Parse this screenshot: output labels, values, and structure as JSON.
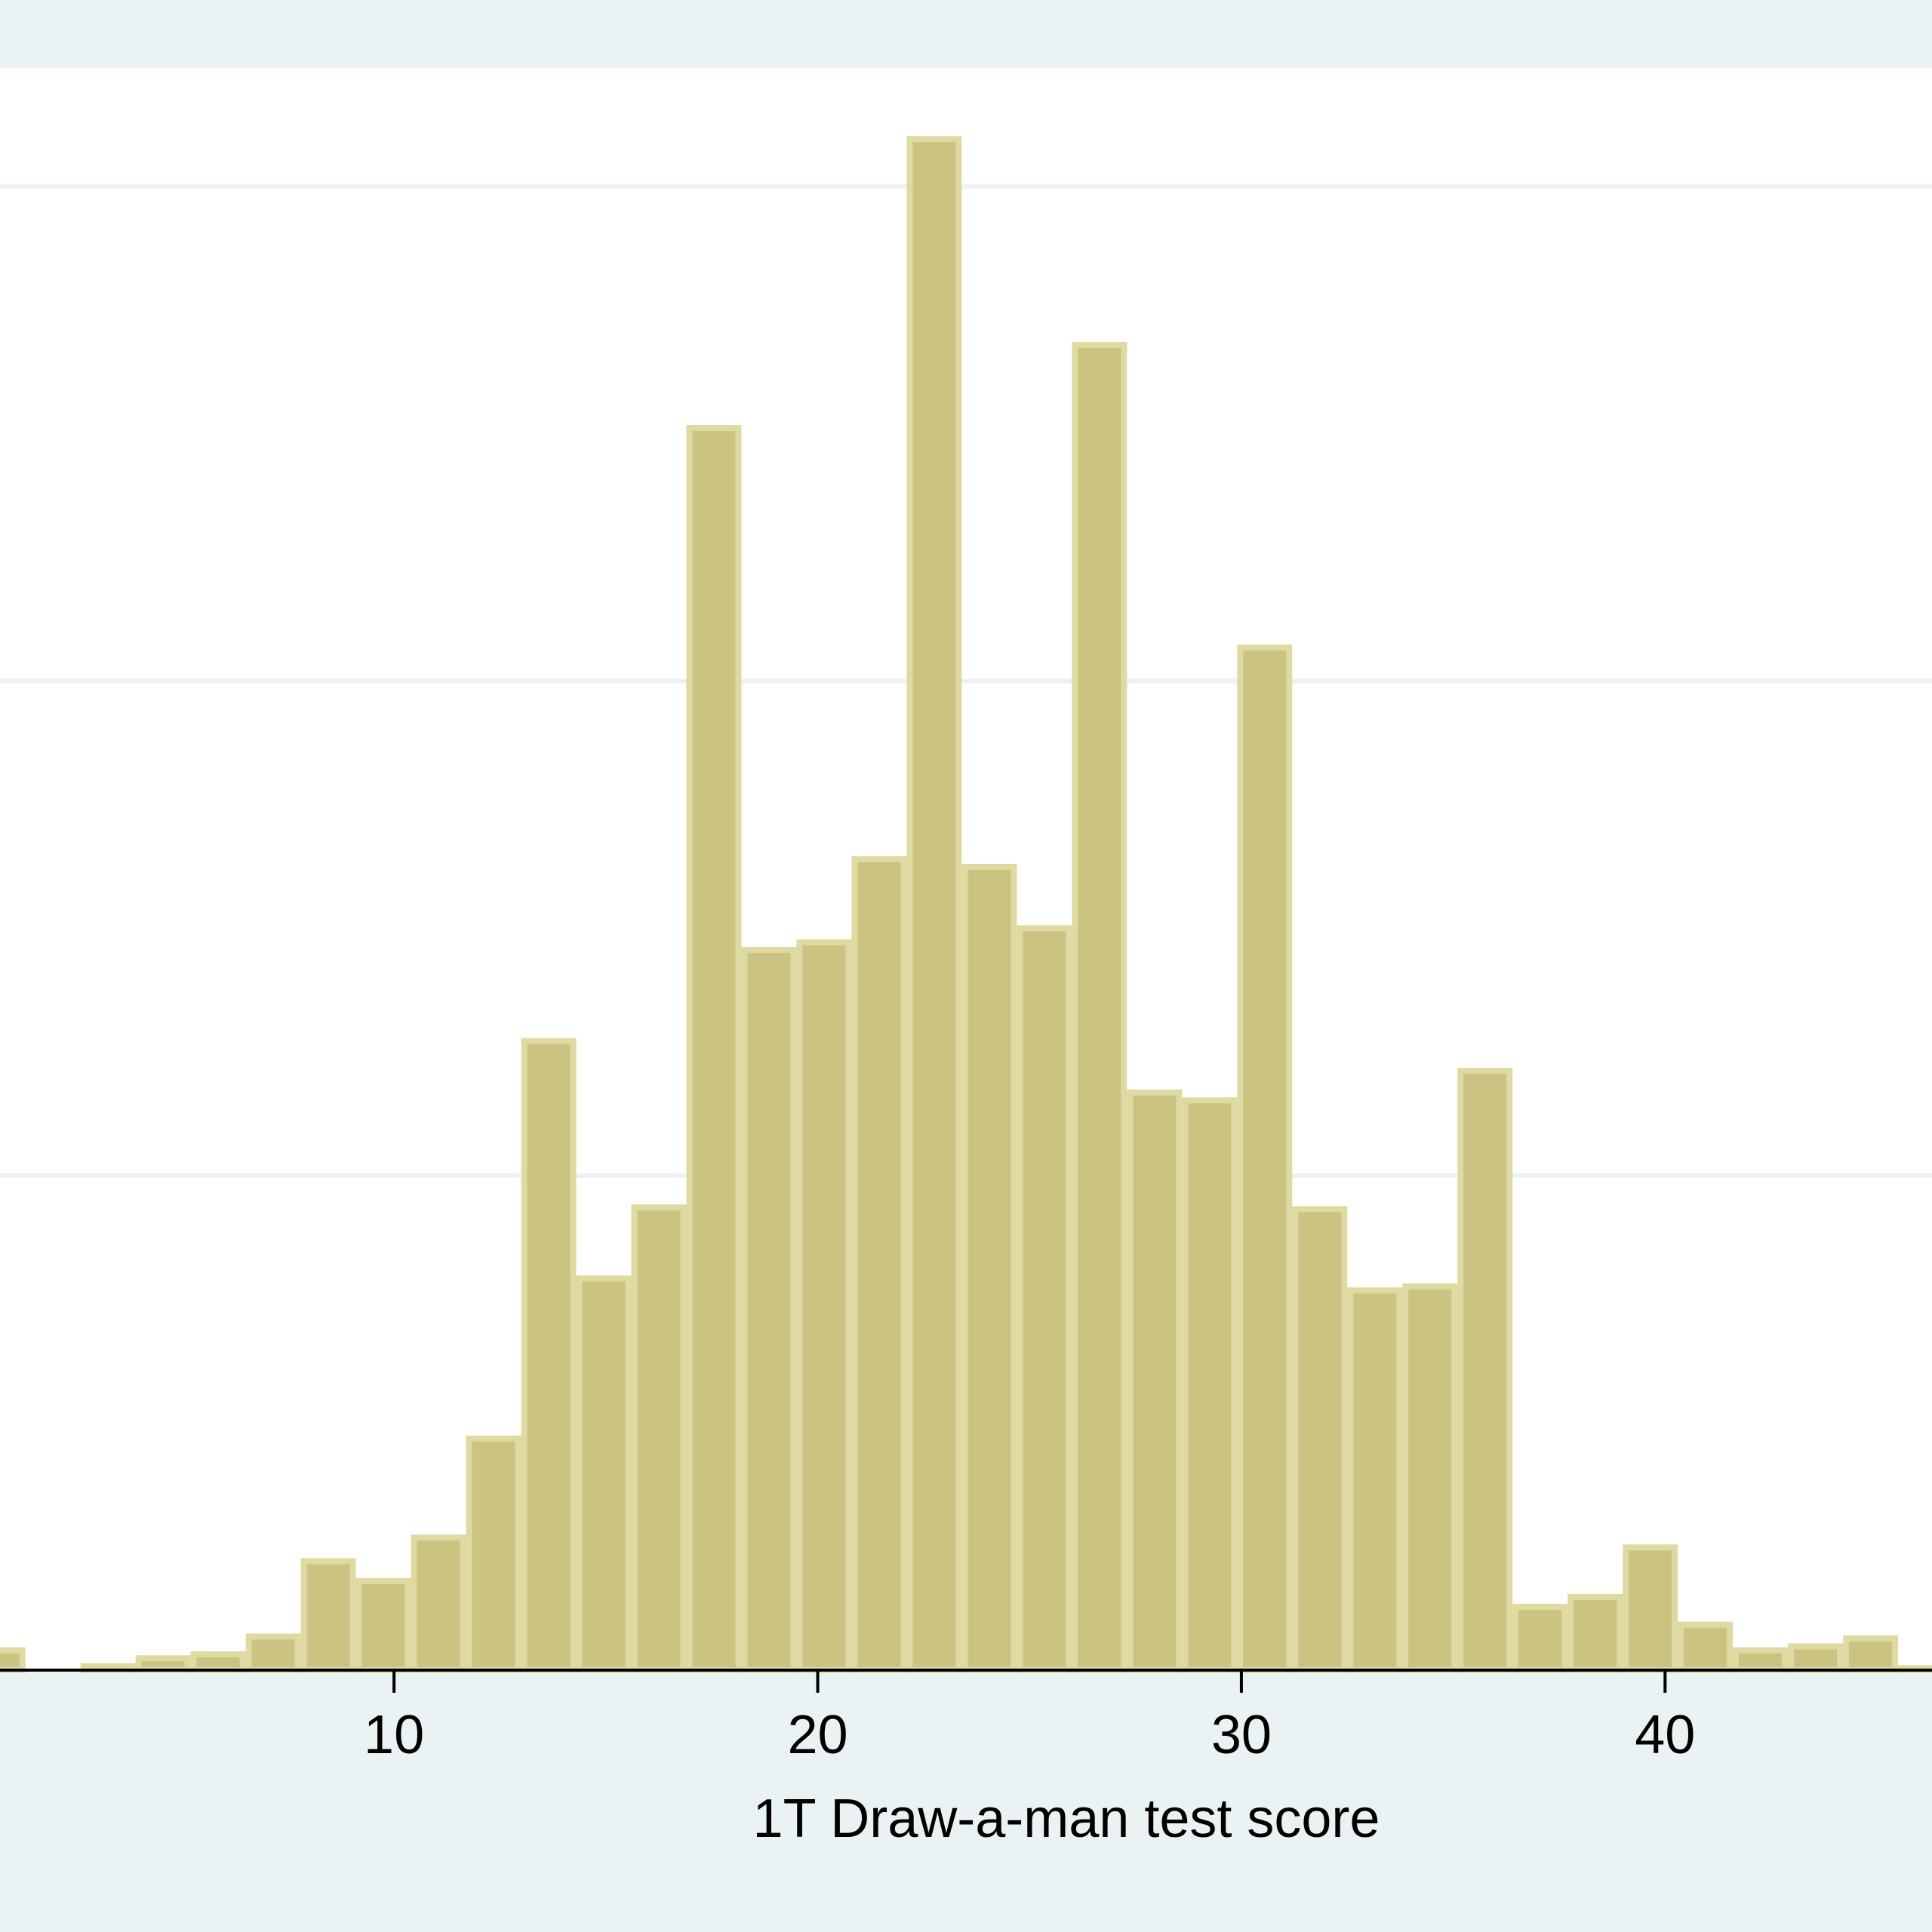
{
  "chart_data": {
    "type": "bar",
    "subtype": "histogram",
    "title": "",
    "xlabel": "1T Draw-a-man test score",
    "ylabel": "",
    "xlim": [
      0.7,
      46.3
    ],
    "ylim": [
      0,
      0.081
    ],
    "grid": true,
    "legend": "none",
    "x_ticks": [
      10,
      20,
      30,
      40
    ],
    "bin_width": 1.3,
    "bins": [
      {
        "x0": 0.0,
        "x1": 1.3,
        "value": 0.001
      },
      {
        "x0": 1.3,
        "x1": 2.6,
        "value": 0.0
      },
      {
        "x0": 2.6,
        "x1": 3.9,
        "value": 0.0002
      },
      {
        "x0": 3.9,
        "x1": 5.2,
        "value": 0.0006
      },
      {
        "x0": 5.2,
        "x1": 6.5,
        "value": 0.0008
      },
      {
        "x0": 6.5,
        "x1": 7.8,
        "value": 0.0017
      },
      {
        "x0": 7.8,
        "x1": 9.1,
        "value": 0.0055
      },
      {
        "x0": 9.1,
        "x1": 10.4,
        "value": 0.0045
      },
      {
        "x0": 10.4,
        "x1": 11.7,
        "value": 0.0067
      },
      {
        "x0": 11.7,
        "x1": 13.0,
        "value": 0.0117
      },
      {
        "x0": 13.0,
        "x1": 14.3,
        "value": 0.0318
      },
      {
        "x0": 14.3,
        "x1": 15.6,
        "value": 0.0198
      },
      {
        "x0": 15.6,
        "x1": 16.9,
        "value": 0.0234
      },
      {
        "x0": 16.9,
        "x1": 18.2,
        "value": 0.0628
      },
      {
        "x0": 18.2,
        "x1": 19.5,
        "value": 0.0364
      },
      {
        "x0": 19.5,
        "x1": 20.8,
        "value": 0.0368
      },
      {
        "x0": 20.8,
        "x1": 22.1,
        "value": 0.041
      },
      {
        "x0": 22.1,
        "x1": 23.4,
        "value": 0.0774
      },
      {
        "x0": 23.4,
        "x1": 24.7,
        "value": 0.0406
      },
      {
        "x0": 24.7,
        "x1": 26.0,
        "value": 0.0375
      },
      {
        "x0": 26.0,
        "x1": 27.3,
        "value": 0.067
      },
      {
        "x0": 27.3,
        "x1": 28.6,
        "value": 0.0292
      },
      {
        "x0": 28.6,
        "x1": 29.9,
        "value": 0.0288
      },
      {
        "x0": 29.9,
        "x1": 31.2,
        "value": 0.0517
      },
      {
        "x0": 31.2,
        "x1": 32.5,
        "value": 0.0233
      },
      {
        "x0": 32.5,
        "x1": 33.8,
        "value": 0.0192
      },
      {
        "x0": 33.8,
        "x1": 35.1,
        "value": 0.0194
      },
      {
        "x0": 35.1,
        "x1": 36.4,
        "value": 0.0303
      },
      {
        "x0": 36.4,
        "x1": 37.7,
        "value": 0.0032
      },
      {
        "x0": 37.7,
        "x1": 39.0,
        "value": 0.0037
      },
      {
        "x0": 39.0,
        "x1": 40.3,
        "value": 0.0062
      },
      {
        "x0": 40.3,
        "x1": 41.6,
        "value": 0.0023
      },
      {
        "x0": 41.6,
        "x1": 42.9,
        "value": 0.001
      },
      {
        "x0": 42.9,
        "x1": 44.2,
        "value": 0.0012
      },
      {
        "x0": 44.2,
        "x1": 45.5,
        "value": 0.0016
      },
      {
        "x0": 45.5,
        "x1": 46.8,
        "value": 0.0001
      }
    ],
    "gridline_values": [
      0.025,
      0.05,
      0.075
    ],
    "colors": {
      "bar_fill": "#cbc381",
      "bar_edge": "#dedaa1",
      "plot_background": "#ffffff",
      "outer_background": "#eaf2f3",
      "grid": "#eaf2f3",
      "axis": "#000000"
    }
  }
}
